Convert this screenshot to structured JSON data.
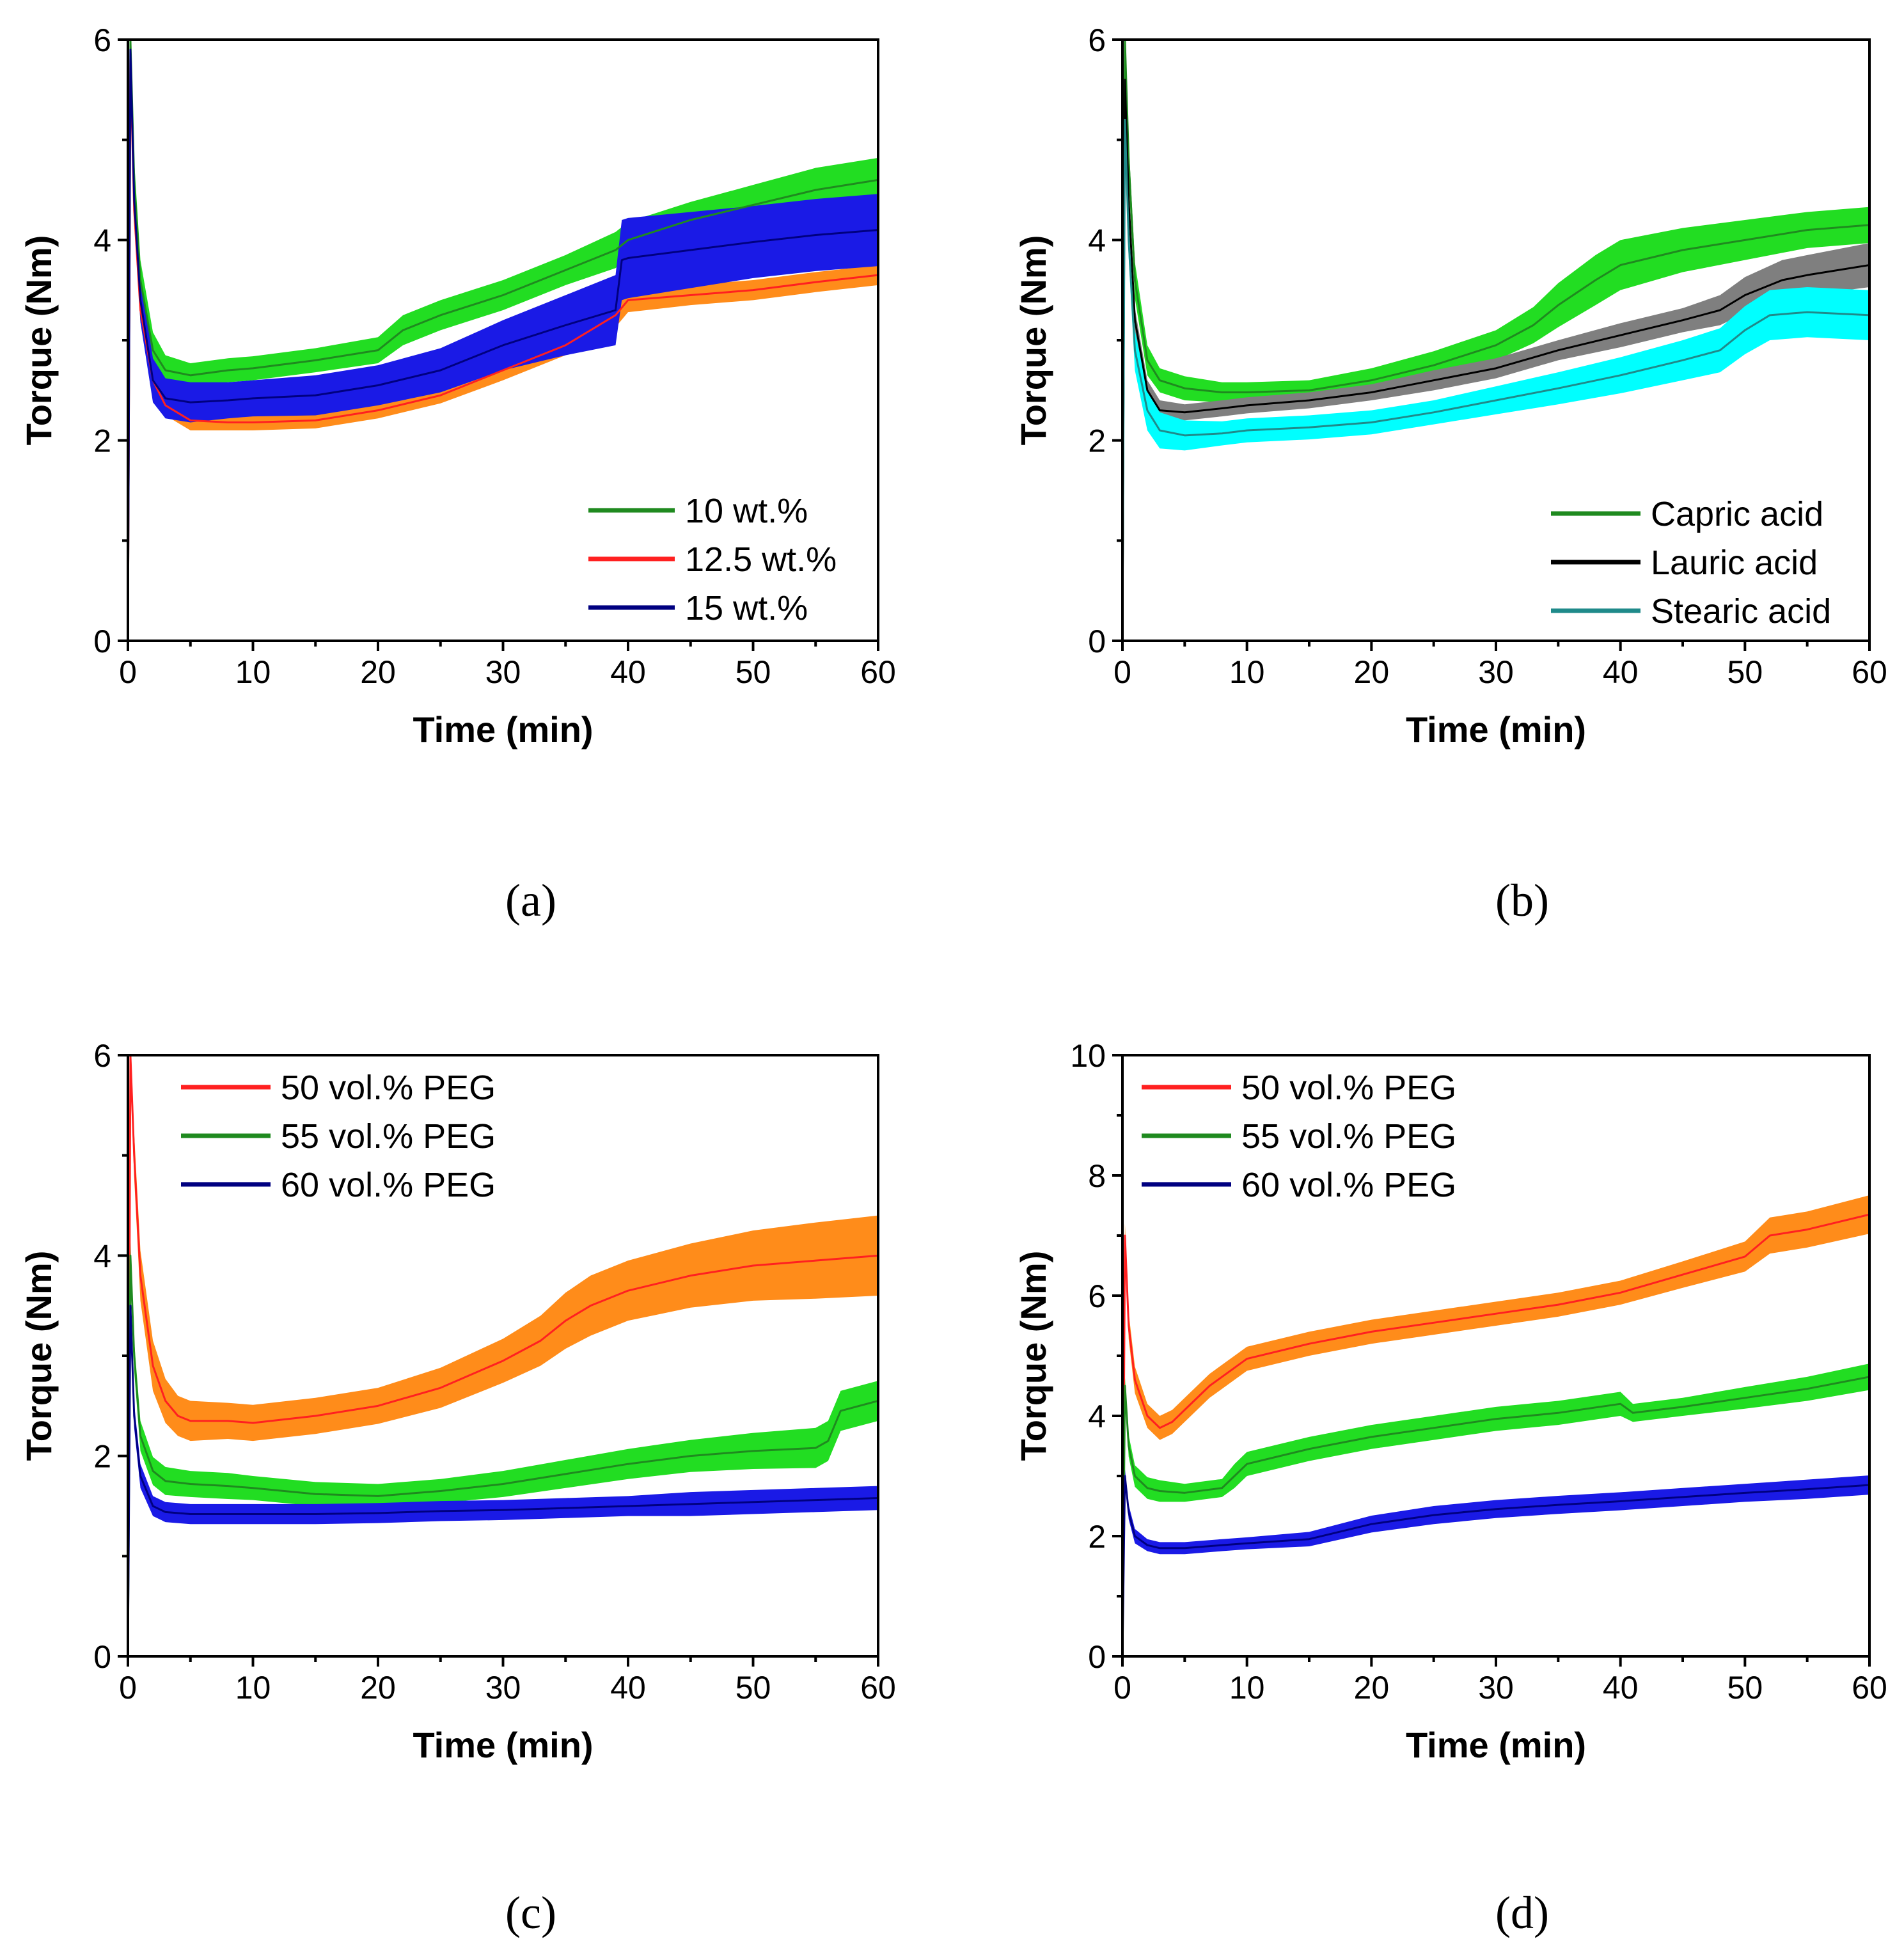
{
  "chart_data": [
    {
      "type": "line",
      "panel_label": "(a)",
      "xlabel": "Time (min)",
      "ylabel": "Torque (Nm)",
      "xlim": [
        0,
        60
      ],
      "ylim": [
        0,
        6
      ],
      "xticks": [
        0,
        10,
        20,
        30,
        40,
        50,
        60
      ],
      "yticks": [
        0,
        2,
        4,
        6
      ],
      "legend_position": "bottom-right",
      "series": [
        {
          "name": "10 wt.%",
          "line_color": "#1f8a1f",
          "band_color": "#22dd22",
          "x": [
            0,
            0.2,
            0.5,
            1,
            2,
            3,
            5,
            8,
            10,
            15,
            20,
            22,
            25,
            30,
            35,
            39,
            40,
            45,
            50,
            55,
            60
          ],
          "y": [
            0,
            6.0,
            4.6,
            3.6,
            2.9,
            2.7,
            2.65,
            2.7,
            2.72,
            2.8,
            2.9,
            3.1,
            3.25,
            3.45,
            3.7,
            3.9,
            4.0,
            4.2,
            4.35,
            4.5,
            4.6
          ],
          "band": [
            0.18,
            0.18,
            0.2,
            0.2,
            0.18,
            0.15,
            0.12,
            0.12,
            0.12,
            0.12,
            0.13,
            0.15,
            0.15,
            0.15,
            0.15,
            0.18,
            0.18,
            0.18,
            0.2,
            0.22,
            0.22
          ]
        },
        {
          "name": "12.5 wt.%",
          "line_color": "#ff2020",
          "band_color": "#ff8c1a",
          "x": [
            0,
            0.2,
            0.5,
            1,
            2,
            3,
            5,
            8,
            10,
            15,
            20,
            25,
            30,
            35,
            39,
            40,
            45,
            50,
            55,
            60
          ],
          "y": [
            0,
            5.8,
            4.3,
            3.3,
            2.6,
            2.35,
            2.2,
            2.18,
            2.18,
            2.2,
            2.3,
            2.45,
            2.7,
            2.95,
            3.25,
            3.4,
            3.45,
            3.5,
            3.58,
            3.65
          ],
          "band": [
            0.12,
            0.12,
            0.12,
            0.12,
            0.1,
            0.1,
            0.1,
            0.08,
            0.08,
            0.08,
            0.08,
            0.08,
            0.1,
            0.1,
            0.12,
            0.12,
            0.1,
            0.1,
            0.1,
            0.1
          ]
        },
        {
          "name": "15 wt.%",
          "line_color": "#000080",
          "band_color": "#1a1ae6",
          "x": [
            0,
            0.2,
            0.5,
            1,
            2,
            3,
            5,
            8,
            10,
            15,
            20,
            25,
            30,
            35,
            39,
            39.5,
            40,
            45,
            50,
            55,
            60
          ],
          "y": [
            0,
            5.9,
            4.4,
            3.4,
            2.6,
            2.42,
            2.38,
            2.4,
            2.42,
            2.45,
            2.55,
            2.7,
            2.95,
            3.15,
            3.3,
            3.8,
            3.82,
            3.9,
            3.98,
            4.05,
            4.1
          ],
          "band": [
            0.2,
            0.2,
            0.22,
            0.22,
            0.22,
            0.2,
            0.2,
            0.18,
            0.18,
            0.2,
            0.2,
            0.22,
            0.25,
            0.3,
            0.35,
            0.4,
            0.4,
            0.38,
            0.36,
            0.36,
            0.36
          ]
        }
      ]
    },
    {
      "type": "line",
      "panel_label": "(b)",
      "xlabel": "Time (min)",
      "ylabel": "Torque (Nm)",
      "xlim": [
        0,
        60
      ],
      "ylim": [
        0,
        6
      ],
      "xticks": [
        0,
        10,
        20,
        30,
        40,
        50,
        60
      ],
      "yticks": [
        0,
        2,
        4,
        6
      ],
      "legend_position": "bottom-right",
      "series": [
        {
          "name": "Capric acid",
          "line_color": "#1f8a1f",
          "band_color": "#22dd22",
          "x": [
            0,
            0.2,
            0.5,
            1,
            2,
            3,
            5,
            8,
            10,
            15,
            20,
            25,
            30,
            33,
            35,
            38,
            40,
            45,
            50,
            55,
            60
          ],
          "y": [
            0,
            6.0,
            4.8,
            3.6,
            2.8,
            2.6,
            2.52,
            2.48,
            2.48,
            2.5,
            2.6,
            2.75,
            2.95,
            3.15,
            3.35,
            3.6,
            3.75,
            3.9,
            4.0,
            4.1,
            4.15
          ],
          "band": [
            0.15,
            0.15,
            0.18,
            0.18,
            0.15,
            0.12,
            0.12,
            0.1,
            0.1,
            0.1,
            0.12,
            0.14,
            0.15,
            0.18,
            0.22,
            0.25,
            0.25,
            0.22,
            0.2,
            0.18,
            0.18
          ]
        },
        {
          "name": "Lauric acid",
          "line_color": "#000000",
          "band_color": "#7f7f7f",
          "x": [
            0,
            0.2,
            0.5,
            1,
            2,
            3,
            5,
            8,
            10,
            15,
            20,
            25,
            30,
            35,
            40,
            45,
            48,
            50,
            53,
            55,
            60
          ],
          "y": [
            0,
            5.6,
            4.4,
            3.2,
            2.5,
            2.3,
            2.28,
            2.32,
            2.35,
            2.4,
            2.48,
            2.6,
            2.72,
            2.9,
            3.05,
            3.2,
            3.3,
            3.45,
            3.6,
            3.65,
            3.75
          ],
          "band": [
            0.1,
            0.1,
            0.12,
            0.12,
            0.1,
            0.1,
            0.08,
            0.08,
            0.08,
            0.08,
            0.08,
            0.1,
            0.1,
            0.1,
            0.12,
            0.12,
            0.15,
            0.18,
            0.2,
            0.2,
            0.22
          ]
        },
        {
          "name": "Stearic acid",
          "line_color": "#1f8a8a",
          "band_color": "#00ffff",
          "x": [
            0,
            0.2,
            0.5,
            1,
            2,
            3,
            5,
            8,
            10,
            15,
            20,
            25,
            30,
            35,
            40,
            45,
            48,
            50,
            52,
            55,
            60
          ],
          "y": [
            0,
            5.2,
            4.0,
            2.9,
            2.3,
            2.1,
            2.05,
            2.07,
            2.1,
            2.13,
            2.18,
            2.28,
            2.4,
            2.52,
            2.65,
            2.8,
            2.9,
            3.1,
            3.25,
            3.28,
            3.25
          ],
          "band": [
            0.15,
            0.15,
            0.18,
            0.2,
            0.2,
            0.18,
            0.15,
            0.12,
            0.12,
            0.12,
            0.12,
            0.12,
            0.14,
            0.16,
            0.18,
            0.2,
            0.22,
            0.24,
            0.25,
            0.25,
            0.25
          ]
        }
      ]
    },
    {
      "type": "line",
      "panel_label": "(c)",
      "xlabel": "Time (min)",
      "ylabel": "Torque (Nm)",
      "xlim": [
        0,
        60
      ],
      "ylim": [
        0,
        6
      ],
      "xticks": [
        0,
        10,
        20,
        30,
        40,
        50,
        60
      ],
      "yticks": [
        0,
        2,
        4,
        6
      ],
      "legend_position": "top-left",
      "series": [
        {
          "name": "50 vol.% PEG",
          "line_color": "#ff2020",
          "band_color": "#ff8c1a",
          "x": [
            0,
            0.2,
            0.5,
            1,
            2,
            3,
            4,
            5,
            8,
            10,
            15,
            20,
            25,
            30,
            33,
            35,
            37,
            40,
            45,
            50,
            55,
            60
          ],
          "y": [
            0,
            6.0,
            5.0,
            3.8,
            2.9,
            2.55,
            2.4,
            2.35,
            2.35,
            2.33,
            2.4,
            2.5,
            2.68,
            2.95,
            3.15,
            3.35,
            3.5,
            3.65,
            3.8,
            3.9,
            3.95,
            4.0
          ],
          "band": [
            0.2,
            0.2,
            0.22,
            0.25,
            0.25,
            0.22,
            0.2,
            0.2,
            0.18,
            0.18,
            0.18,
            0.18,
            0.2,
            0.22,
            0.25,
            0.28,
            0.3,
            0.3,
            0.32,
            0.35,
            0.38,
            0.4
          ]
        },
        {
          "name": "55 vol.% PEG",
          "line_color": "#1f8a1f",
          "band_color": "#22dd22",
          "x": [
            0,
            0.2,
            0.5,
            1,
            2,
            3,
            5,
            8,
            10,
            15,
            20,
            25,
            30,
            35,
            40,
            45,
            50,
            55,
            56,
            57,
            60
          ],
          "y": [
            0,
            4.0,
            3.0,
            2.2,
            1.85,
            1.75,
            1.72,
            1.7,
            1.68,
            1.62,
            1.6,
            1.65,
            1.72,
            1.82,
            1.92,
            2.0,
            2.05,
            2.08,
            2.15,
            2.45,
            2.55
          ],
          "band": [
            0.15,
            0.15,
            0.15,
            0.15,
            0.14,
            0.14,
            0.13,
            0.13,
            0.12,
            0.12,
            0.12,
            0.12,
            0.13,
            0.14,
            0.15,
            0.16,
            0.18,
            0.2,
            0.2,
            0.2,
            0.2
          ]
        },
        {
          "name": "60 vol.% PEG",
          "line_color": "#000080",
          "band_color": "#1a1ae6",
          "x": [
            0,
            0.2,
            0.5,
            1,
            2,
            3,
            5,
            8,
            10,
            15,
            20,
            25,
            30,
            35,
            40,
            45,
            50,
            55,
            60
          ],
          "y": [
            0,
            3.5,
            2.4,
            1.8,
            1.5,
            1.44,
            1.42,
            1.42,
            1.42,
            1.42,
            1.43,
            1.45,
            1.46,
            1.48,
            1.5,
            1.52,
            1.54,
            1.56,
            1.58
          ],
          "band": [
            0.1,
            0.12,
            0.12,
            0.12,
            0.1,
            0.1,
            0.1,
            0.1,
            0.1,
            0.1,
            0.1,
            0.1,
            0.1,
            0.1,
            0.1,
            0.12,
            0.12,
            0.12,
            0.12
          ]
        }
      ]
    },
    {
      "type": "line",
      "panel_label": "(d)",
      "xlabel": "Time (min)",
      "ylabel": "Torque (Nm)",
      "xlim": [
        0,
        60
      ],
      "ylim": [
        0,
        10
      ],
      "xticks": [
        0,
        10,
        20,
        30,
        40,
        50,
        60
      ],
      "yticks": [
        0,
        2,
        4,
        6,
        8,
        10
      ],
      "legend_position": "top-left",
      "series": [
        {
          "name": "50 vol.% PEG",
          "line_color": "#ff2020",
          "band_color": "#ff8c1a",
          "x": [
            0,
            0.2,
            0.5,
            1,
            2,
            3,
            4,
            5,
            7,
            10,
            15,
            20,
            25,
            30,
            35,
            40,
            45,
            50,
            52,
            55,
            60
          ],
          "y": [
            0,
            7.0,
            5.5,
            4.6,
            4.0,
            3.8,
            3.9,
            4.1,
            4.5,
            4.95,
            5.2,
            5.4,
            5.55,
            5.7,
            5.85,
            6.05,
            6.35,
            6.65,
            7.0,
            7.1,
            7.35
          ],
          "band": [
            0.2,
            0.2,
            0.22,
            0.22,
            0.2,
            0.2,
            0.2,
            0.2,
            0.2,
            0.2,
            0.2,
            0.2,
            0.2,
            0.2,
            0.2,
            0.2,
            0.22,
            0.25,
            0.3,
            0.3,
            0.32
          ]
        },
        {
          "name": "55 vol.% PEG",
          "line_color": "#1f8a1f",
          "band_color": "#22dd22",
          "x": [
            0,
            0.2,
            0.5,
            1,
            2,
            3,
            5,
            8,
            9,
            10,
            15,
            20,
            25,
            30,
            35,
            40,
            41,
            45,
            50,
            55,
            60
          ],
          "y": [
            0,
            4.5,
            3.5,
            3.0,
            2.8,
            2.75,
            2.72,
            2.8,
            3.0,
            3.2,
            3.45,
            3.65,
            3.8,
            3.95,
            4.05,
            4.2,
            4.05,
            4.15,
            4.3,
            4.45,
            4.65
          ],
          "band": [
            0.15,
            0.15,
            0.18,
            0.18,
            0.18,
            0.18,
            0.15,
            0.15,
            0.2,
            0.2,
            0.2,
            0.2,
            0.2,
            0.2,
            0.2,
            0.2,
            0.15,
            0.15,
            0.18,
            0.2,
            0.22
          ]
        },
        {
          "name": "60 vol.% PEG",
          "line_color": "#000080",
          "band_color": "#1a1ae6",
          "x": [
            0,
            0.2,
            0.5,
            1,
            2,
            3,
            5,
            8,
            10,
            15,
            20,
            25,
            30,
            35,
            40,
            45,
            50,
            55,
            60
          ],
          "y": [
            0,
            3.0,
            2.4,
            2.0,
            1.85,
            1.8,
            1.8,
            1.85,
            1.88,
            1.95,
            2.2,
            2.35,
            2.45,
            2.52,
            2.58,
            2.65,
            2.72,
            2.78,
            2.85
          ],
          "band": [
            0.1,
            0.12,
            0.12,
            0.12,
            0.1,
            0.1,
            0.1,
            0.1,
            0.1,
            0.12,
            0.14,
            0.15,
            0.15,
            0.15,
            0.15,
            0.15,
            0.15,
            0.16,
            0.16
          ]
        }
      ]
    }
  ]
}
